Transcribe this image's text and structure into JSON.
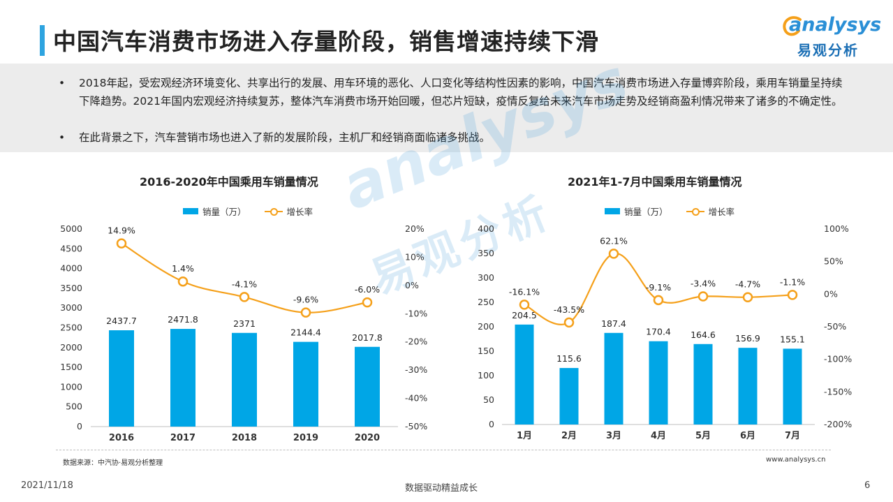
{
  "header": {
    "title": "中国汽车消费市场进入存量阶段，销售增速持续下滑",
    "logo_word": "analysys",
    "logo_cn": "易观分析"
  },
  "summary": {
    "bullet_symbol": "•",
    "bullets": [
      "2018年起，受宏观经济环境变化、共享出行的发展、用车环境的恶化、人口变化等结构性因素的影响，中国汽车消费市场进入存量博弈阶段，乘用车销量呈持续下降趋势。2021年国内宏观经济持续复苏，整体汽车消费市场开始回暖，但芯片短缺，疫情反复给未来汽车市场走势及经销商盈利情况带来了诸多的不确定性。",
      "在此背景之下，汽车营销市场也进入了新的发展阶段，主机厂和经销商面临诸多挑战。"
    ]
  },
  "colors": {
    "accent": "#2ea4e0",
    "bar": "#00a6e6",
    "line": "#f5a01a",
    "summary_bg": "#ececec"
  },
  "chart_data": [
    {
      "type": "bar",
      "title": "2016-2020年中国乘用车销量情况",
      "categories": [
        "2016",
        "2017",
        "2018",
        "2019",
        "2020"
      ],
      "series": [
        {
          "name": "销量（万）",
          "type": "bar",
          "axis": "left",
          "values": [
            2437.7,
            2471.8,
            2371,
            2144.4,
            2017.8
          ],
          "labels": [
            "2437.7",
            "2471.8",
            "2371",
            "2144.4",
            "2017.8"
          ]
        },
        {
          "name": "增长率",
          "type": "line",
          "axis": "right",
          "values": [
            14.9,
            1.4,
            -4.1,
            -9.6,
            -6.0
          ],
          "labels": [
            "14.9%",
            "1.4%",
            "-4.1%",
            "-9.6%",
            "-6.0%"
          ]
        }
      ],
      "ylim": [
        0,
        5000
      ],
      "yticks": [
        "0",
        "500",
        "1000",
        "1500",
        "2000",
        "2500",
        "3000",
        "3500",
        "4000",
        "4500",
        "5000"
      ],
      "y2lim": [
        -50,
        20
      ],
      "y2ticks": [
        "-50%",
        "-40%",
        "-30%",
        "-20%",
        "-10%",
        "0%",
        "10%",
        "20%"
      ],
      "legend": "top",
      "grid": false
    },
    {
      "type": "bar",
      "title": "2021年1-7月中国乘用车销量情况",
      "categories": [
        "1月",
        "2月",
        "3月",
        "4月",
        "5月",
        "6月",
        "7月"
      ],
      "series": [
        {
          "name": "销量（万）",
          "type": "bar",
          "axis": "left",
          "values": [
            204.5,
            115.6,
            187.4,
            170.4,
            164.6,
            156.9,
            155.1
          ],
          "labels": [
            "204.5",
            "115.6",
            "187.4",
            "170.4",
            "164.6",
            "156.9",
            "155.1"
          ]
        },
        {
          "name": "增长率",
          "type": "line",
          "axis": "right",
          "values": [
            -16.1,
            -43.5,
            62.1,
            -9.1,
            -3.4,
            -4.7,
            -1.1
          ],
          "labels": [
            "-16.1%",
            "-43.5%",
            "62.1%",
            "-9.1%",
            "-3.4%",
            "-4.7%",
            "-1.1%"
          ]
        }
      ],
      "ylim": [
        0,
        400
      ],
      "yticks": [
        "0",
        "50",
        "100",
        "150",
        "200",
        "250",
        "300",
        "350",
        "400"
      ],
      "y2lim": [
        -200,
        100
      ],
      "y2ticks": [
        "-200%",
        "-150%",
        "-100%",
        "-50%",
        "0%",
        "50%",
        "100%"
      ],
      "legend": "top",
      "grid": false
    }
  ],
  "footer": {
    "source": "数据来源：中汽协·易观分析整理",
    "site": "www.analysys.cn",
    "date": "2021/11/18",
    "slogan": "数据驱动精益成长",
    "page": "6"
  }
}
